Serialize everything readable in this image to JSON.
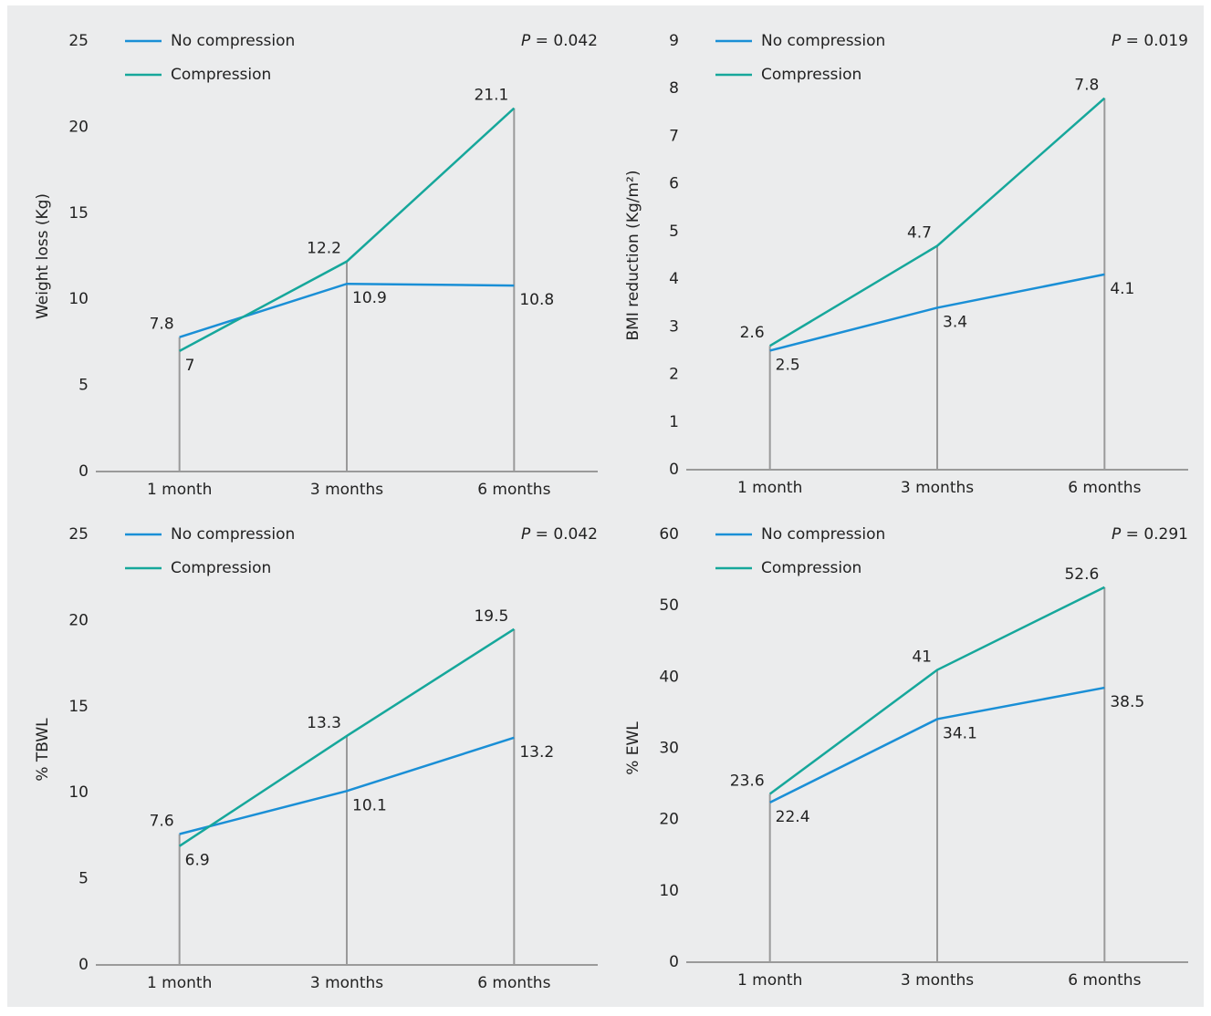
{
  "chart_data": [
    {
      "type": "line",
      "ylabel": "Weight loss (Kg)",
      "p_symbol": "P",
      "p_text": "= 0.042",
      "categories": [
        "1 month",
        "3 months",
        "6 months"
      ],
      "series": [
        {
          "name": "No compression",
          "color": "#1a8fd6",
          "values": [
            7.8,
            10.9,
            10.8
          ]
        },
        {
          "name": "Compression",
          "color": "#16a79b",
          "values": [
            7,
            12.2,
            21.1
          ]
        }
      ],
      "ylim": [
        0,
        25
      ],
      "yticks": [
        0,
        5,
        10,
        15,
        20,
        25
      ]
    },
    {
      "type": "line",
      "ylabel": "BMI reduction (Kg/m²)",
      "p_symbol": "P",
      "p_text": "= 0.019",
      "categories": [
        "1 month",
        "3 months",
        "6 months"
      ],
      "series": [
        {
          "name": "No compression",
          "color": "#1a8fd6",
          "values": [
            2.5,
            3.4,
            4.1
          ]
        },
        {
          "name": "Compression",
          "color": "#16a79b",
          "values": [
            2.6,
            4.7,
            7.8
          ]
        }
      ],
      "ylim": [
        0,
        9
      ],
      "yticks": [
        0,
        1,
        2,
        3,
        4,
        5,
        6,
        7,
        8,
        9
      ]
    },
    {
      "type": "line",
      "ylabel": "% TBWL",
      "p_symbol": "P",
      "p_text": "= 0.042",
      "categories": [
        "1 month",
        "3 months",
        "6 months"
      ],
      "series": [
        {
          "name": "No compression",
          "color": "#1a8fd6",
          "values": [
            7.6,
            10.1,
            13.2
          ]
        },
        {
          "name": "Compression",
          "color": "#16a79b",
          "values": [
            6.9,
            13.3,
            19.5
          ]
        }
      ],
      "ylim": [
        0,
        25
      ],
      "yticks": [
        0,
        5,
        10,
        15,
        20,
        25
      ]
    },
    {
      "type": "line",
      "ylabel": "% EWL",
      "p_symbol": "P",
      "p_text": "= 0.291",
      "categories": [
        "1 month",
        "3 months",
        "6 months"
      ],
      "series": [
        {
          "name": "No compression",
          "color": "#1a8fd6",
          "values": [
            22.4,
            34.1,
            38.5
          ]
        },
        {
          "name": "Compression",
          "color": "#16a79b",
          "values": [
            23.6,
            41,
            52.6
          ]
        }
      ],
      "ylim": [
        0,
        60
      ],
      "yticks": [
        0,
        10,
        20,
        30,
        40,
        50,
        60
      ]
    }
  ]
}
